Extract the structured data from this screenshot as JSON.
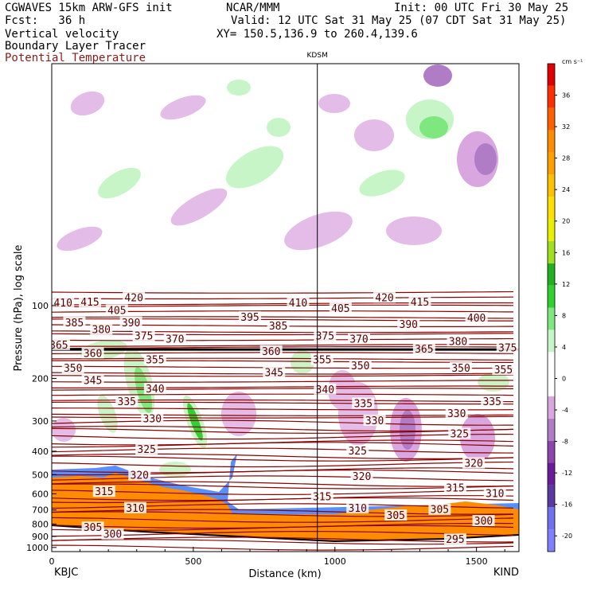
{
  "header": {
    "model": "CGWAVES 15km ARW-GFS init",
    "agency": "NCAR/MMM",
    "init": "Init: 00 UTC Fri 30 May 25",
    "fcst": "Fcst:   36 h",
    "valid": "Valid: 12 UTC Sat 31 May 25 (07 CDT Sat 31 May 25)",
    "field1": "Vertical velocity",
    "field2": "Boundary Layer Tracer",
    "field3": "Potential Temperature",
    "xy": "XY= 150.5,136.9 to 260.4,139.6",
    "station_marker": "KDSM"
  },
  "colors": {
    "theta_contour": "#8b0000",
    "pbl_orange": "#ff8c00",
    "pbl_outline": "#000000"
  },
  "chart_data": {
    "type": "cross-section",
    "xlabel": "Distance (km)",
    "ylabel": "Pressure (hPa), log scale",
    "x_ticks": [
      "0",
      "500",
      "1000",
      "1500"
    ],
    "x_tick_values": [
      0,
      500,
      1000,
      1500
    ],
    "xlim": [
      0,
      1650
    ],
    "x_end_labels": {
      "left": "KBJC",
      "right": "KIND"
    },
    "station_line_km": 938,
    "y_ticks": [
      "100",
      "200",
      "300",
      "400",
      "500",
      "600",
      "700",
      "800",
      "900",
      "1000"
    ],
    "y_tick_values": [
      100,
      200,
      300,
      400,
      500,
      600,
      700,
      800,
      900,
      1000
    ],
    "ylim": [
      1040,
      10
    ],
    "log_scale": true,
    "tropopause_pressure": 152,
    "colorbar": {
      "unit": "cm s⁻¹",
      "tick_labels": [
        "36",
        "32",
        "28",
        "24",
        "20",
        "16",
        "12",
        "8",
        "4",
        "0",
        "-4",
        "-8",
        "-12",
        "-16",
        "-20"
      ],
      "tick_values": [
        36,
        32,
        28,
        24,
        20,
        16,
        12,
        8,
        4,
        0,
        -4,
        -8,
        -12,
        -16,
        -20
      ],
      "range": [
        -22,
        40
      ],
      "colors": [
        "#8080ff",
        "#7070f0",
        "#5a3aa0",
        "#6a1b9a",
        "#8e44ad",
        "#b07cc6",
        "#d9a6e0",
        "#ffffff",
        "#ffffff",
        "#c8f5c8",
        "#7ee87e",
        "#30d030",
        "#20b020",
        "#a0e020",
        "#e8f000",
        "#ffe000",
        "#ffc000",
        "#ffa000",
        "#ff8c00",
        "#ff6000",
        "#ff3000",
        "#e00000"
      ]
    },
    "theta_labels": [
      {
        "text": "420",
        "km": 290,
        "p": 93
      },
      {
        "text": "415",
        "km": 135,
        "p": 97
      },
      {
        "text": "410",
        "km": 40,
        "p": 98
      },
      {
        "text": "405",
        "km": 230,
        "p": 105
      },
      {
        "text": "390",
        "km": 280,
        "p": 118
      },
      {
        "text": "385",
        "km": 80,
        "p": 118
      },
      {
        "text": "380",
        "km": 175,
        "p": 126
      },
      {
        "text": "375",
        "km": 325,
        "p": 134
      },
      {
        "text": "370",
        "km": 435,
        "p": 138
      },
      {
        "text": "365",
        "km": 25,
        "p": 146
      },
      {
        "text": "360",
        "km": 145,
        "p": 158
      },
      {
        "text": "355",
        "km": 365,
        "p": 168
      },
      {
        "text": "350",
        "km": 75,
        "p": 182
      },
      {
        "text": "345",
        "km": 145,
        "p": 205
      },
      {
        "text": "340",
        "km": 365,
        "p": 222
      },
      {
        "text": "335",
        "km": 265,
        "p": 250
      },
      {
        "text": "330",
        "km": 355,
        "p": 295
      },
      {
        "text": "325",
        "km": 335,
        "p": 395
      },
      {
        "text": "320",
        "km": 310,
        "p": 505
      },
      {
        "text": "315",
        "km": 185,
        "p": 590
      },
      {
        "text": "310",
        "km": 295,
        "p": 690
      },
      {
        "text": "305",
        "km": 145,
        "p": 830
      },
      {
        "text": "300",
        "km": 215,
        "p": 885
      },
      {
        "text": "395",
        "km": 700,
        "p": 112
      },
      {
        "text": "410",
        "km": 870,
        "p": 98
      },
      {
        "text": "405",
        "km": 1020,
        "p": 103
      },
      {
        "text": "420",
        "km": 1175,
        "p": 93
      },
      {
        "text": "415",
        "km": 1300,
        "p": 97
      },
      {
        "text": "385",
        "km": 800,
        "p": 122
      },
      {
        "text": "375",
        "km": 965,
        "p": 134
      },
      {
        "text": "370",
        "km": 1085,
        "p": 138
      },
      {
        "text": "390",
        "km": 1260,
        "p": 120
      },
      {
        "text": "400",
        "km": 1500,
        "p": 113
      },
      {
        "text": "380",
        "km": 1435,
        "p": 141
      },
      {
        "text": "375",
        "km": 1610,
        "p": 150
      },
      {
        "text": "360",
        "km": 775,
        "p": 155
      },
      {
        "text": "355",
        "km": 955,
        "p": 168
      },
      {
        "text": "350",
        "km": 1090,
        "p": 178
      },
      {
        "text": "345",
        "km": 785,
        "p": 190
      },
      {
        "text": "350",
        "km": 1445,
        "p": 182
      },
      {
        "text": "355",
        "km": 1595,
        "p": 185
      },
      {
        "text": "365",
        "km": 1315,
        "p": 152
      },
      {
        "text": "340",
        "km": 965,
        "p": 223
      },
      {
        "text": "335",
        "km": 1100,
        "p": 255
      },
      {
        "text": "335",
        "km": 1555,
        "p": 250
      },
      {
        "text": "330",
        "km": 1140,
        "p": 300
      },
      {
        "text": "330",
        "km": 1430,
        "p": 280
      },
      {
        "text": "325",
        "km": 1080,
        "p": 400
      },
      {
        "text": "325",
        "km": 1440,
        "p": 340
      },
      {
        "text": "320",
        "km": 1095,
        "p": 510
      },
      {
        "text": "320",
        "km": 1490,
        "p": 450
      },
      {
        "text": "315",
        "km": 955,
        "p": 620
      },
      {
        "text": "315",
        "km": 1425,
        "p": 570
      },
      {
        "text": "310",
        "km": 1080,
        "p": 690
      },
      {
        "text": "310",
        "km": 1565,
        "p": 600
      },
      {
        "text": "305",
        "km": 1215,
        "p": 740
      },
      {
        "text": "305",
        "km": 1370,
        "p": 700
      },
      {
        "text": "300",
        "km": 1525,
        "p": 780
      },
      {
        "text": "295",
        "km": 1425,
        "p": 930
      }
    ]
  }
}
